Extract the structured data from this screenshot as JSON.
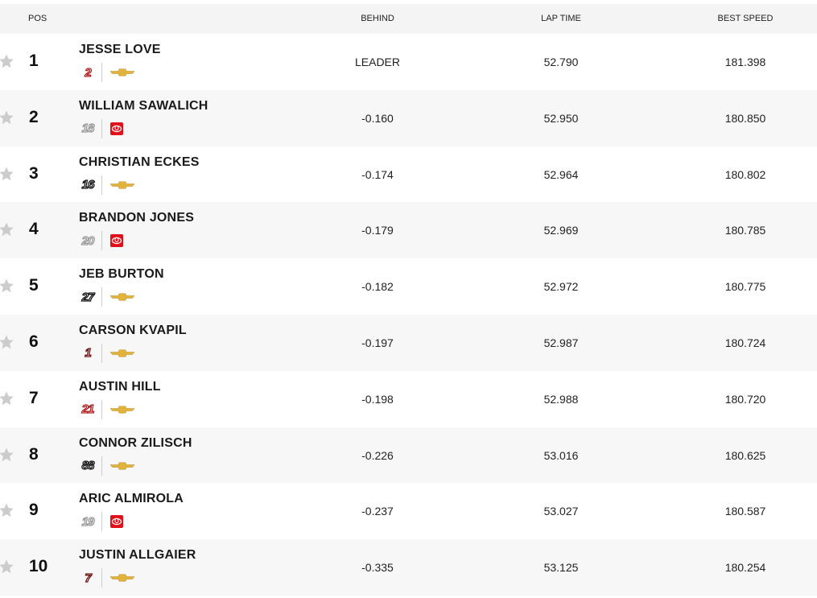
{
  "header": {
    "pos": "POS",
    "behind": "BEHIND",
    "lap_time": "LAP TIME",
    "best_speed": "BEST SPEED"
  },
  "colors": {
    "chevrolet": "#e2b33c",
    "toyota": "#e0111b",
    "star": "#cccccc"
  },
  "rows": [
    {
      "pos": "1",
      "name": "JESSE LOVE",
      "car": "2",
      "car_color": "#b22222",
      "mfr": "chevrolet",
      "behind": "LEADER",
      "lap_time": "52.790",
      "best_speed": "181.398"
    },
    {
      "pos": "2",
      "name": "WILLIAM SAWALICH",
      "car": "18",
      "car_color": "#9a9a9a",
      "mfr": "toyota",
      "behind": "-0.160",
      "lap_time": "52.950",
      "best_speed": "180.850"
    },
    {
      "pos": "3",
      "name": "CHRISTIAN ECKES",
      "car": "16",
      "car_color": "#111111",
      "mfr": "chevrolet",
      "behind": "-0.174",
      "lap_time": "52.964",
      "best_speed": "180.802"
    },
    {
      "pos": "4",
      "name": "BRANDON JONES",
      "car": "20",
      "car_color": "#9a9a9a",
      "mfr": "toyota",
      "behind": "-0.179",
      "lap_time": "52.969",
      "best_speed": "180.785"
    },
    {
      "pos": "5",
      "name": "JEB BURTON",
      "car": "27",
      "car_color": "#111111",
      "mfr": "chevrolet",
      "behind": "-0.182",
      "lap_time": "52.972",
      "best_speed": "180.775"
    },
    {
      "pos": "6",
      "name": "CARSON KVAPIL",
      "car": "1",
      "car_color": "#6b1010",
      "mfr": "chevrolet",
      "behind": "-0.197",
      "lap_time": "52.987",
      "best_speed": "180.724"
    },
    {
      "pos": "7",
      "name": "AUSTIN HILL",
      "car": "21",
      "car_color": "#b22222",
      "mfr": "chevrolet",
      "behind": "-0.198",
      "lap_time": "52.988",
      "best_speed": "180.720"
    },
    {
      "pos": "8",
      "name": "CONNOR ZILISCH",
      "car": "88",
      "car_color": "#111111",
      "mfr": "chevrolet",
      "behind": "-0.226",
      "lap_time": "53.016",
      "best_speed": "180.625"
    },
    {
      "pos": "9",
      "name": "ARIC ALMIROLA",
      "car": "19",
      "car_color": "#9a9a9a",
      "mfr": "toyota",
      "behind": "-0.237",
      "lap_time": "53.027",
      "best_speed": "180.587"
    },
    {
      "pos": "10",
      "name": "JUSTIN ALLGAIER",
      "car": "7",
      "car_color": "#6b1010",
      "mfr": "chevrolet",
      "behind": "-0.335",
      "lap_time": "53.125",
      "best_speed": "180.254"
    }
  ]
}
